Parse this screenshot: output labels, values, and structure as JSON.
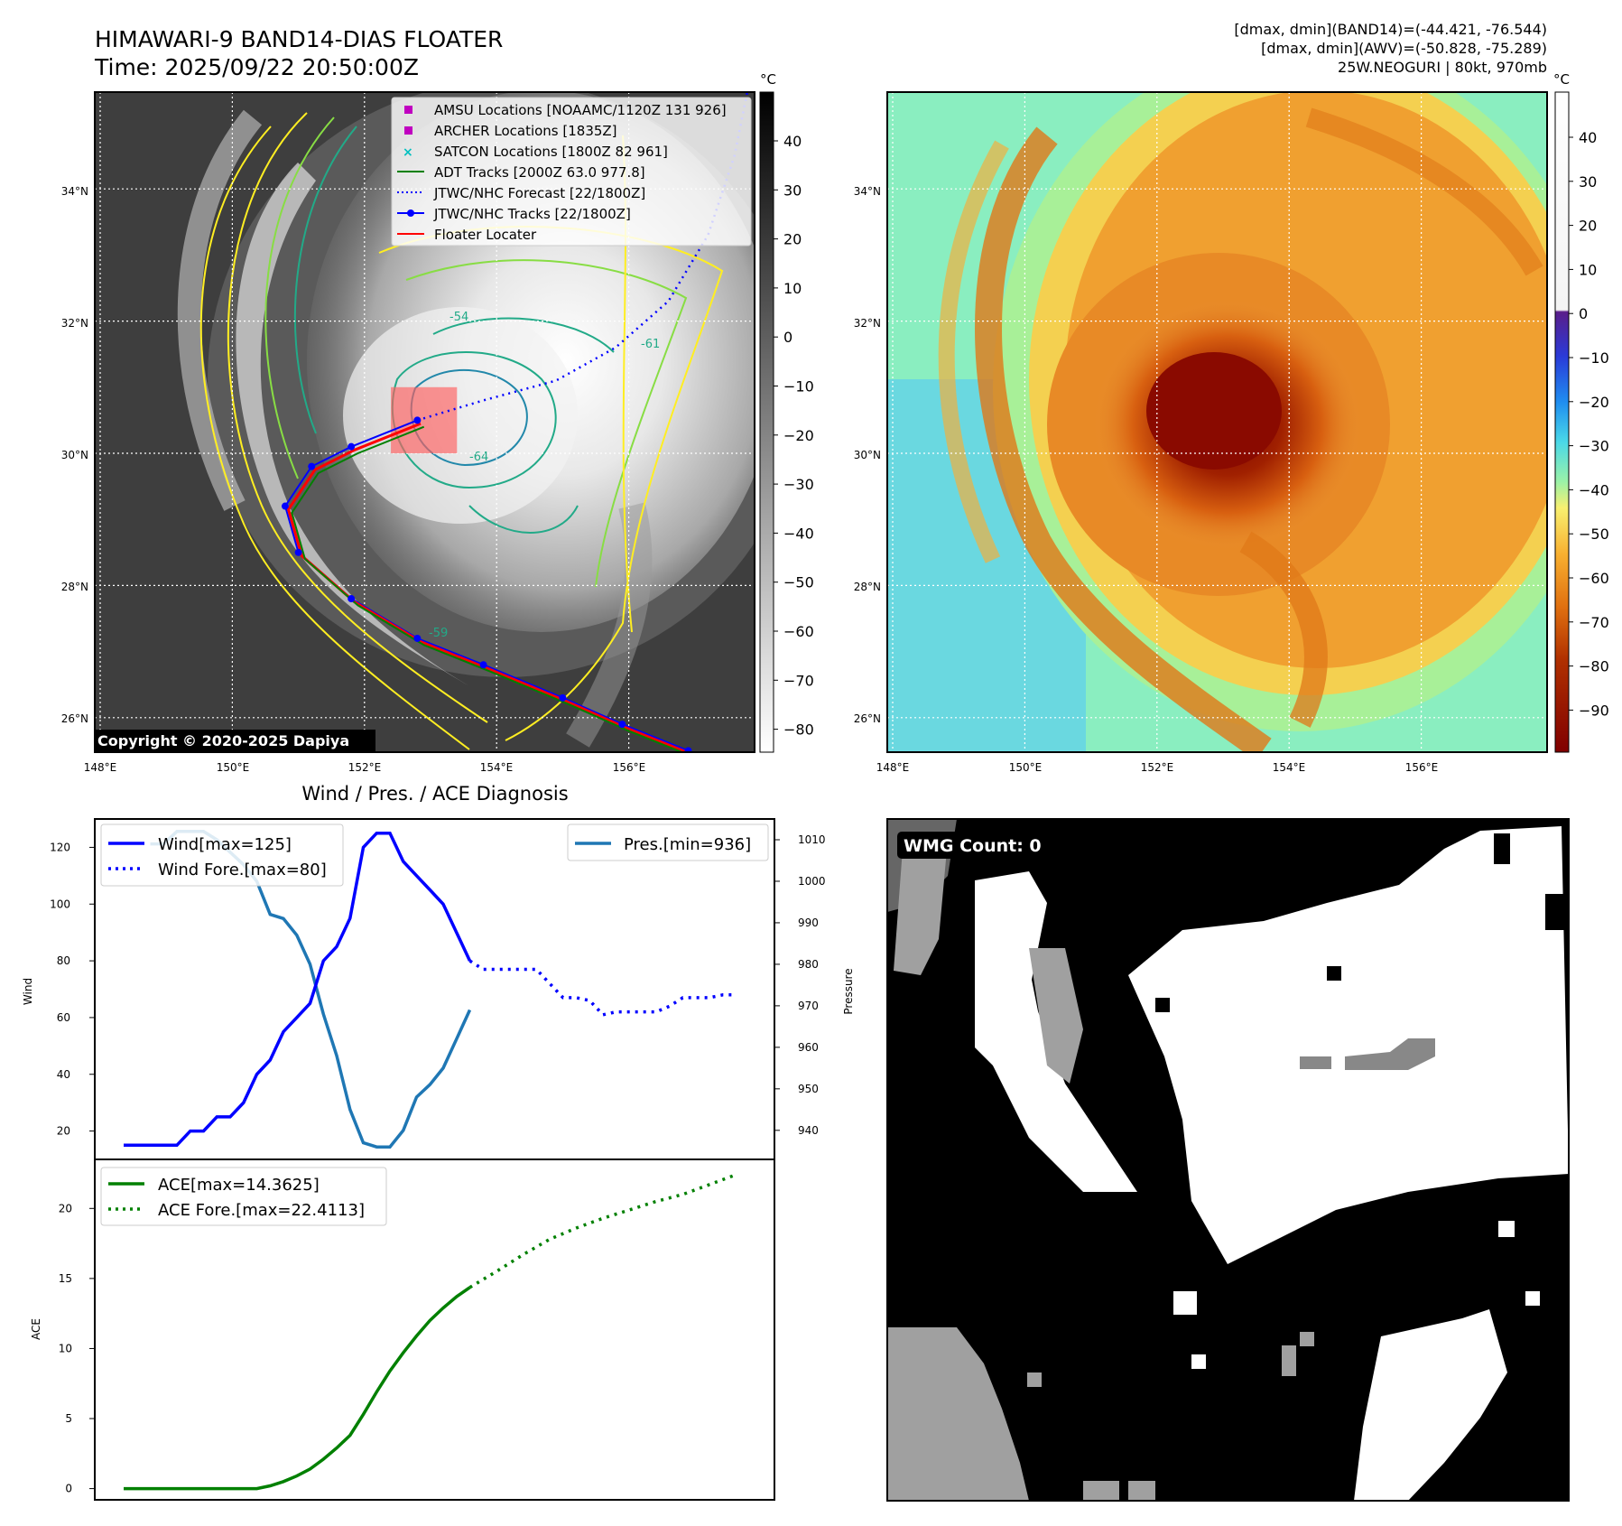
{
  "header": {
    "title": "HIMAWARI-9 BAND14-DIAS FLOATER",
    "time": "Time: 2025/09/22 20:50:00Z",
    "stats": [
      "[dmax, dmin](BAND14)=(-44.421, -76.544)",
      "[dmax, dmin](AWV)=(-50.828, -75.289)",
      "25W.NEOGURI | 80kt, 970mb"
    ]
  },
  "ir_map": {
    "lon_ticks": [
      "148°E",
      "150°E",
      "152°E",
      "154°E",
      "156°E"
    ],
    "lat_ticks": [
      "34°N",
      "32°N",
      "30°N",
      "28°N",
      "26°N"
    ],
    "colorbar_unit": "°C",
    "colorbar_ticks": [
      "40",
      "30",
      "20",
      "10",
      "0",
      "−10",
      "−20",
      "−30",
      "−40",
      "−50",
      "−60",
      "−70",
      "−80"
    ],
    "copyright": "Copyright © 2020-2025 Dapiya",
    "contour_labels": [
      "-54",
      "-61",
      "-64",
      "-59"
    ],
    "legend": [
      {
        "label": "AMSU Locations [NOAAMC/1120Z 131 926]",
        "color": "#c000c0",
        "marker": "square"
      },
      {
        "label": "ARCHER Locations [1835Z]",
        "color": "#c000c0",
        "marker": "square"
      },
      {
        "label": "SATCON Locations [1800Z 82 961]",
        "color": "#00c0c0",
        "marker": "x"
      },
      {
        "label": "ADT Tracks [2000Z 63.0 977.8]",
        "color": "#008000",
        "marker": "line"
      },
      {
        "label": "JTWC/NHC Forecast [22/1800Z]",
        "color": "#0000ff",
        "marker": "dotted"
      },
      {
        "label": "JTWC/NHC Tracks [22/1800Z]",
        "color": "#0000ff",
        "marker": "line-dot"
      },
      {
        "label": "Floater Locater",
        "color": "#ff0000",
        "marker": "line"
      }
    ],
    "track_lonlat": [
      [
        156.9,
        25.5
      ],
      [
        155.9,
        25.9
      ],
      [
        155.0,
        26.3
      ],
      [
        153.8,
        26.8
      ],
      [
        152.8,
        27.2
      ],
      [
        151.8,
        27.8
      ],
      [
        151.0,
        28.5
      ],
      [
        150.8,
        29.2
      ],
      [
        151.2,
        29.8
      ],
      [
        151.8,
        30.1
      ],
      [
        152.8,
        30.5
      ]
    ],
    "forecast_lonlat": [
      [
        152.8,
        30.5
      ],
      [
        153.8,
        30.8
      ],
      [
        154.9,
        31.1
      ],
      [
        155.8,
        31.6
      ],
      [
        156.6,
        32.3
      ],
      [
        157.2,
        33.3
      ],
      [
        157.6,
        34.5
      ],
      [
        157.8,
        35.5
      ]
    ],
    "floater_box": {
      "lon": [
        152.4,
        153.4
      ],
      "lat": [
        30.0,
        31.0
      ]
    }
  },
  "awv_map": {
    "lon_ticks": [
      "148°E",
      "150°E",
      "152°E",
      "154°E",
      "156°E"
    ],
    "lat_ticks": [
      "34°N",
      "32°N",
      "30°N",
      "28°N",
      "26°N"
    ],
    "colorbar_unit": "°C",
    "colorbar_ticks": [
      "40",
      "30",
      "20",
      "10",
      "0",
      "−10",
      "−20",
      "−30",
      "−40",
      "−50",
      "−60",
      "−70",
      "−80",
      "−90"
    ]
  },
  "diagnosis": {
    "title": "Wind / Pres. / ACE Diagnosis",
    "wind_ylabel": "Wind",
    "pres_ylabel": "Pressure",
    "ace_ylabel": "ACE",
    "wind_ticks": [
      "20",
      "40",
      "60",
      "80",
      "100",
      "120"
    ],
    "pres_ticks": [
      "940",
      "950",
      "960",
      "970",
      "980",
      "990",
      "1000",
      "1010"
    ],
    "ace_ticks": [
      "0",
      "5",
      "10",
      "15",
      "20"
    ],
    "legend_wind": "Wind[max=125]",
    "legend_wind_fore": "Wind Fore.[max=80]",
    "legend_pres": "Pres.[min=936]",
    "legend_ace": "ACE[max=14.3625]",
    "legend_ace_fore": "ACE Fore.[max=22.4113]"
  },
  "chart_data": [
    {
      "type": "line",
      "title": "Wind / Pres. / ACE Diagnosis",
      "xlabel": "",
      "ylabel": "Wind",
      "ylim": [
        10,
        130
      ],
      "x": [
        0,
        1,
        2,
        3,
        4,
        5,
        6,
        7,
        8,
        9,
        10,
        11,
        12,
        13,
        14,
        15,
        16,
        17,
        18,
        19,
        20,
        21,
        22,
        23,
        24,
        25,
        26,
        27,
        28,
        29
      ],
      "series": [
        {
          "name": "Wind[max=125]",
          "x": [
            0,
            1,
            2,
            3,
            4,
            5,
            6,
            7,
            8,
            9,
            10,
            11,
            12,
            13,
            14,
            15,
            16,
            17,
            18,
            19,
            20,
            21,
            22,
            23,
            24,
            25,
            26
          ],
          "values": [
            15,
            15,
            15,
            15,
            15,
            20,
            20,
            25,
            25,
            30,
            40,
            45,
            55,
            60,
            65,
            80,
            85,
            95,
            120,
            125,
            125,
            115,
            110,
            105,
            100,
            90,
            80
          ]
        },
        {
          "name": "Wind Fore.[max=80]",
          "x": [
            26,
            27,
            28,
            29,
            30,
            31,
            32,
            33,
            34,
            35,
            36,
            37,
            38,
            39,
            40,
            41,
            42,
            43,
            44,
            45,
            46
          ],
          "values": [
            80,
            77,
            77,
            77,
            77,
            77,
            72,
            67,
            67,
            66,
            61,
            62,
            62,
            62,
            62,
            64,
            67,
            67,
            67,
            68,
            68
          ]
        },
        {
          "name": "Pres.[min=936]",
          "axis": "right",
          "x": [
            2,
            3,
            4,
            5,
            6,
            7,
            8,
            9,
            10,
            11,
            12,
            13,
            14,
            15,
            16,
            17,
            18,
            19,
            20,
            21,
            22,
            23,
            24,
            25,
            26
          ],
          "values": [
            1009,
            1009,
            1012,
            1012,
            1012,
            1010,
            1007,
            1004,
            1000,
            992,
            991,
            987,
            980,
            968,
            958,
            945,
            937,
            936,
            936,
            940,
            948,
            951,
            955,
            962,
            969
          ]
        }
      ],
      "y2label": "Pressure",
      "y2lim": [
        933,
        1015
      ]
    },
    {
      "type": "line",
      "title": "",
      "xlabel": "",
      "ylabel": "ACE",
      "ylim": [
        -0.8,
        23.5
      ],
      "series": [
        {
          "name": "ACE[max=14.3625]",
          "x": [
            0,
            1,
            2,
            3,
            4,
            5,
            6,
            7,
            8,
            9,
            10,
            11,
            12,
            13,
            14,
            15,
            16,
            17,
            18,
            19,
            20,
            21,
            22,
            23,
            24,
            25,
            26
          ],
          "values": [
            0,
            0,
            0,
            0,
            0,
            0,
            0,
            0,
            0,
            0,
            0,
            0.2,
            0.5,
            0.9,
            1.4,
            2.1,
            2.9,
            3.8,
            5.3,
            6.9,
            8.4,
            9.7,
            10.9,
            12.0,
            12.9,
            13.7,
            14.36
          ]
        },
        {
          "name": "ACE Fore.[max=22.4113]",
          "x": [
            26,
            28,
            30,
            32,
            34,
            36,
            38,
            40,
            42,
            44,
            46
          ],
          "values": [
            14.36,
            15.5,
            16.7,
            17.8,
            18.6,
            19.3,
            19.9,
            20.5,
            21.0,
            21.7,
            22.41
          ]
        }
      ]
    }
  ],
  "wmg_panel": {
    "label": "WMG Count: 0"
  }
}
